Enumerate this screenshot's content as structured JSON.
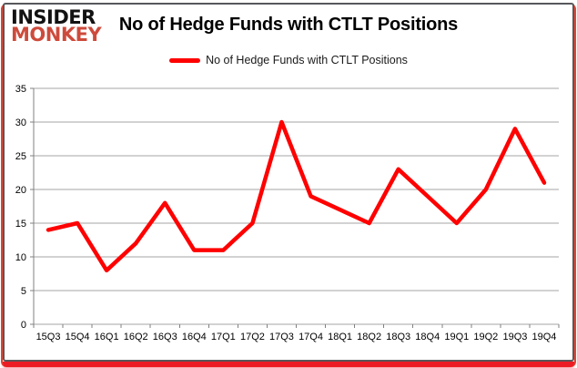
{
  "header": {
    "logo_line1": "INSIDER",
    "logo_line2": "MONKEY",
    "title": "No of Hedge Funds with CTLT Positions"
  },
  "legend": {
    "label": "No of Hedge Funds with CTLT Positions",
    "color": "#ff0000"
  },
  "chart_data": {
    "type": "line",
    "title": "No of Hedge Funds with CTLT Positions",
    "categories": [
      "15Q3",
      "15Q4",
      "16Q1",
      "16Q2",
      "16Q3",
      "16Q4",
      "17Q1",
      "17Q2",
      "17Q3",
      "17Q4",
      "18Q1",
      "18Q2",
      "18Q3",
      "18Q4",
      "19Q1",
      "19Q2",
      "19Q3",
      "19Q4"
    ],
    "series": [
      {
        "name": "No of Hedge Funds with CTLT Positions",
        "values": [
          14,
          15,
          8,
          12,
          18,
          11,
          11,
          15,
          30,
          19,
          17,
          15,
          23,
          19,
          15,
          20,
          29,
          21
        ]
      }
    ],
    "xlabel": "",
    "ylabel": "",
    "ylim": [
      0,
      35
    ],
    "ytick_step": 5,
    "grid": true,
    "legend_position": "top-center",
    "line_color": "#ff0000"
  },
  "colors": {
    "accent_red": "#ec1c24",
    "logo_red": "#cd4b3c",
    "gridline": "#a6a6a6",
    "axis": "#808080",
    "card_border": "#57585a"
  }
}
